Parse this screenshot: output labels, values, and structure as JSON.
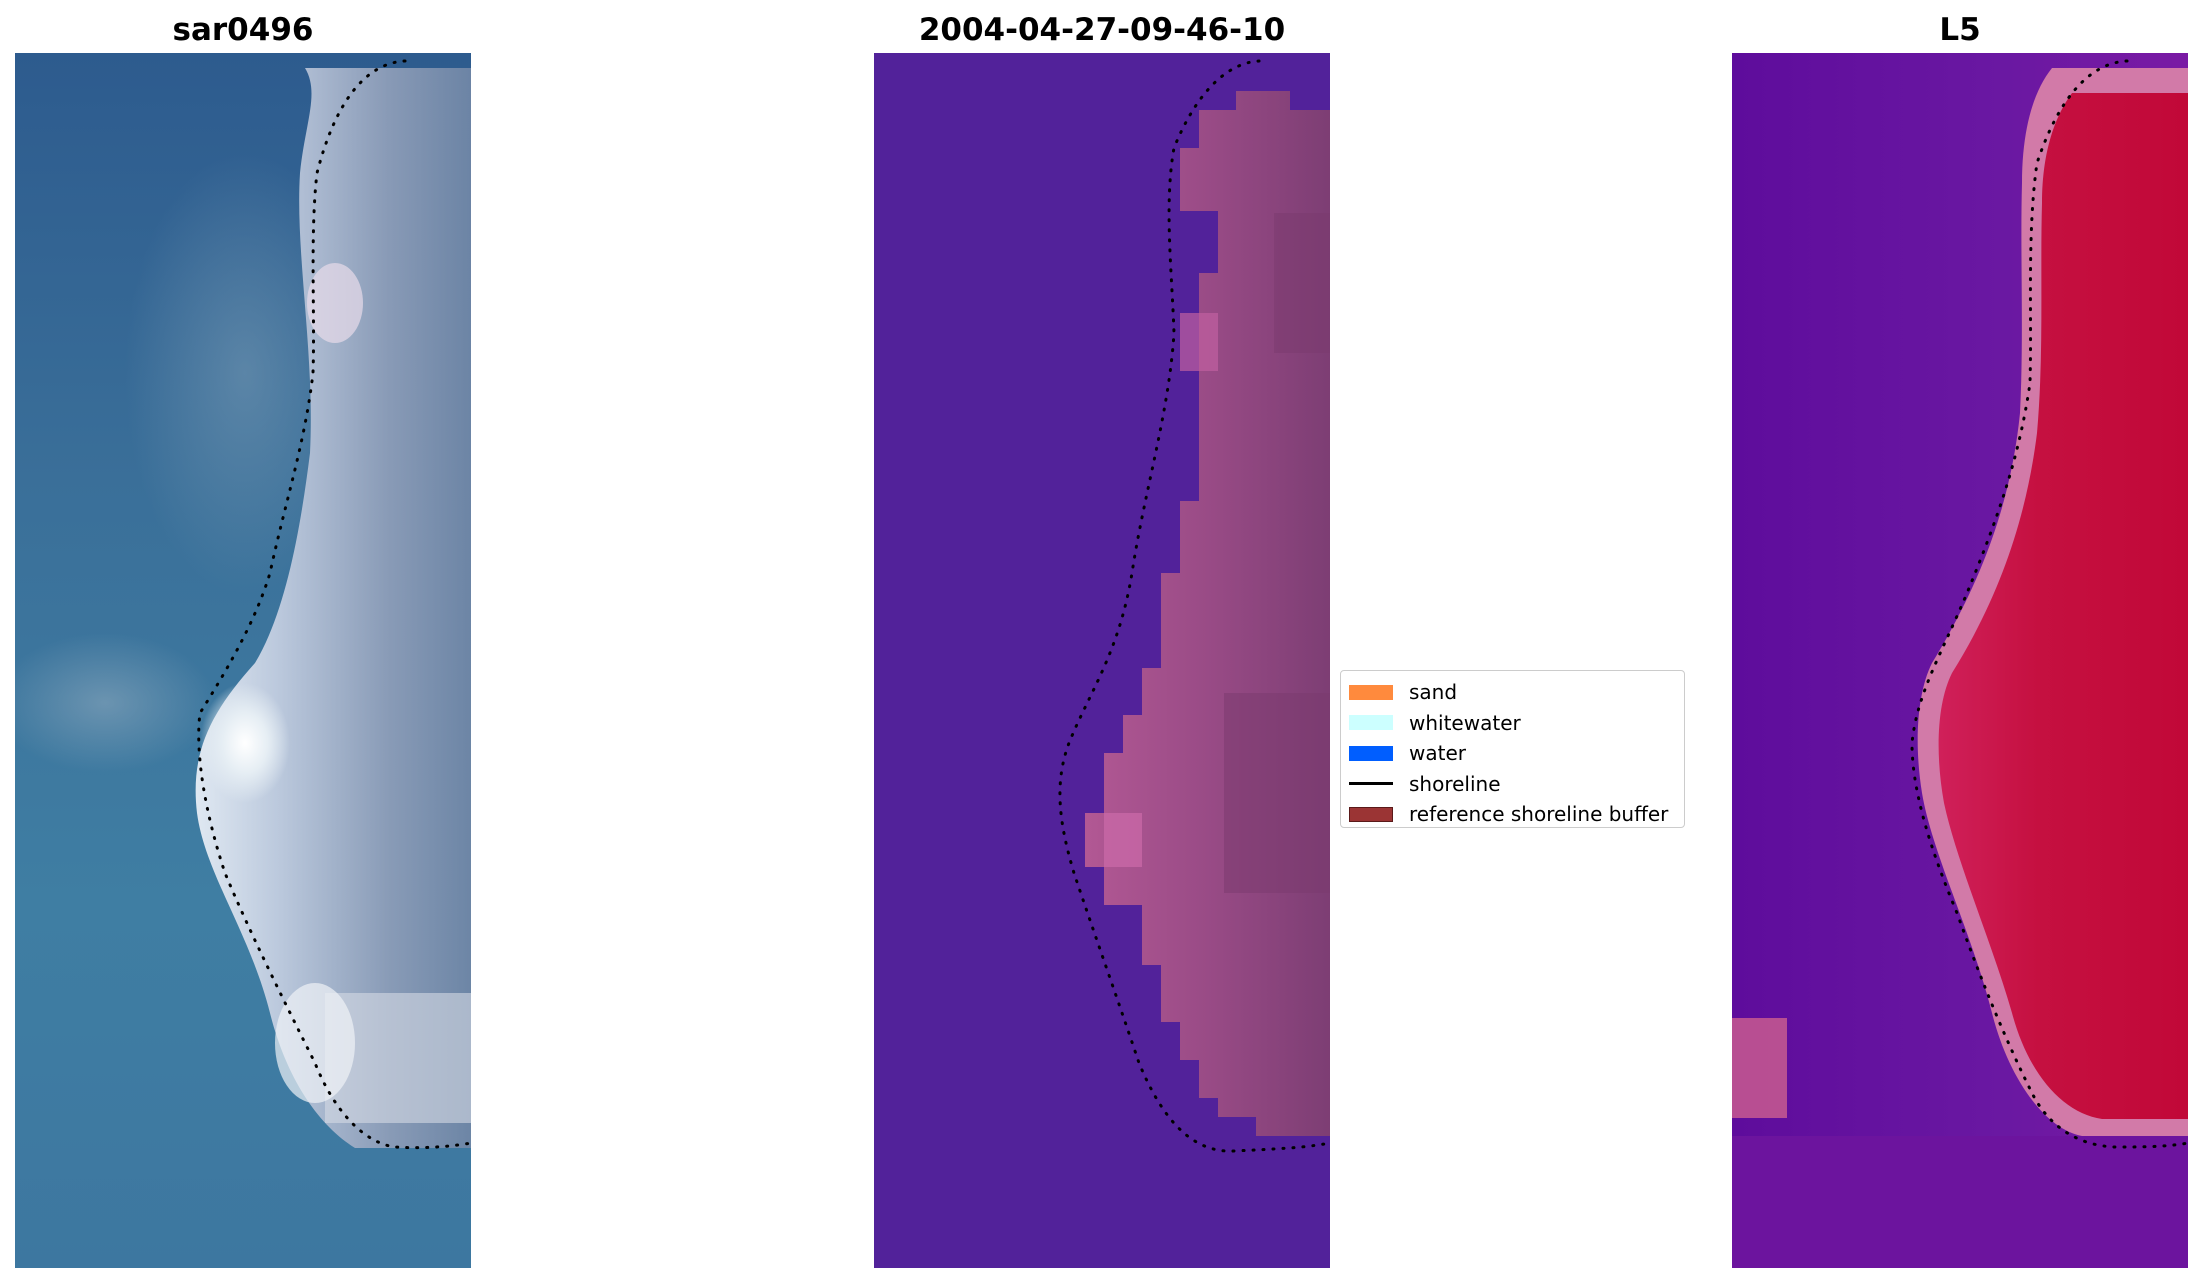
{
  "panels": [
    {
      "title": "sar0496"
    },
    {
      "title": "2004-04-27-09-46-10"
    },
    {
      "title": "L5"
    }
  ],
  "legend": [
    {
      "label": "sand",
      "kind": "patch",
      "color": "#ff8a3d"
    },
    {
      "label": "whitewater",
      "kind": "patch",
      "color": "#ccffff"
    },
    {
      "label": "water",
      "kind": "patch",
      "color": "#005eff"
    },
    {
      "label": "shoreline",
      "kind": "line",
      "color": "#000000"
    },
    {
      "label": "reference shoreline buffer",
      "kind": "patch",
      "color": "#9b3434"
    }
  ],
  "colors": {
    "rgb_water": "#2f6a9a",
    "rgb_beach": "#b8c4dc",
    "class_background": "#52229a",
    "class_buffer": "#a8508f",
    "l5_water": "#6a149e",
    "l5_land": "#c4103c"
  }
}
